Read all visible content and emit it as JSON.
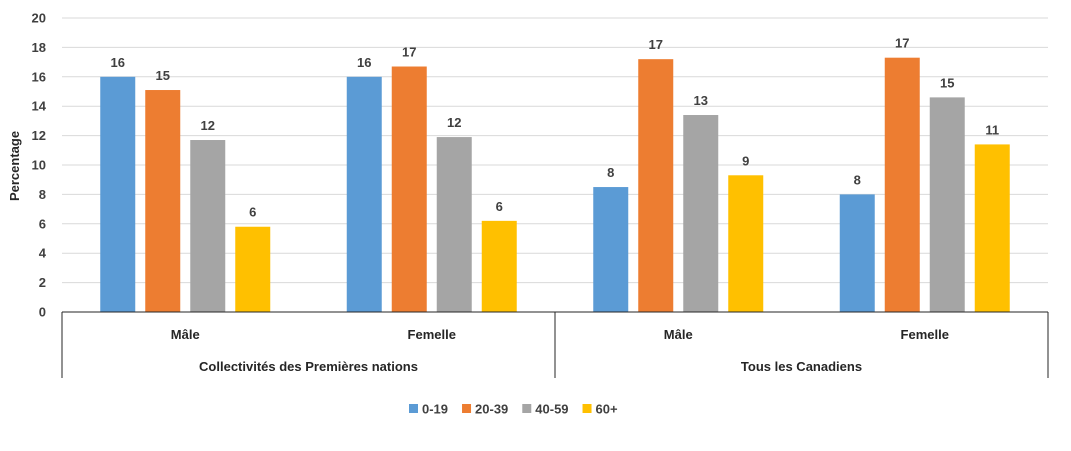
{
  "chart_data": {
    "type": "bar",
    "title": "",
    "xlabel": "",
    "ylabel": "Percentage",
    "ylim": [
      0,
      20
    ],
    "yticks": [
      0,
      2,
      4,
      6,
      8,
      10,
      12,
      14,
      16,
      18,
      20
    ],
    "grid": true,
    "legend_position": "bottom",
    "groups": [
      {
        "label": "Collectivités des Premières nations",
        "categories": [
          "Mâle",
          "Femelle"
        ]
      },
      {
        "label": "Tous les Canadiens",
        "categories": [
          "Mâle",
          "Femelle"
        ]
      }
    ],
    "categories": [
      "Mâle",
      "Femelle",
      "Mâle",
      "Femelle"
    ],
    "series": [
      {
        "name": "0-19",
        "color": "#5b9bd5",
        "values": [
          16.0,
          16.0,
          8.5,
          8.0
        ],
        "labels": [
          "16",
          "16",
          "8",
          "8"
        ]
      },
      {
        "name": "20-39",
        "color": "#ed7d31",
        "values": [
          15.1,
          16.7,
          17.2,
          17.3
        ],
        "labels": [
          "15",
          "17",
          "17",
          "17"
        ]
      },
      {
        "name": "40-59",
        "color": "#a5a5a5",
        "values": [
          11.7,
          11.9,
          13.4,
          14.6
        ],
        "labels": [
          "12",
          "12",
          "13",
          "15"
        ]
      },
      {
        "name": "60+",
        "color": "#ffc000",
        "values": [
          5.8,
          6.2,
          9.3,
          11.4
        ],
        "labels": [
          "6",
          "6",
          "9",
          "11"
        ]
      }
    ]
  }
}
